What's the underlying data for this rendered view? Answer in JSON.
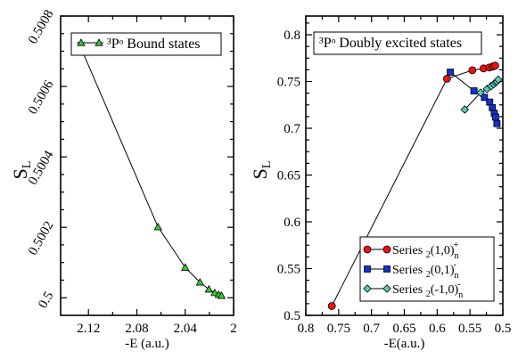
{
  "chart_data": [
    {
      "type": "line",
      "legend_text": "³Pᵒ  Bound states",
      "legend_placement": "top-right",
      "xlabel": "-E (a.u.)",
      "ylabel": "S",
      "ylabel_sub": "L",
      "x_reversed": true,
      "xlim": [
        2.143,
        2.0
      ],
      "ylim": [
        0.49995,
        0.5008
      ],
      "xticks": [
        2.12,
        2.08,
        2.04,
        2.0
      ],
      "xtick_labels": [
        "2.12",
        "2.08",
        "2.04",
        "2"
      ],
      "yticks": [
        0.5,
        0.5002,
        0.5004,
        0.5006,
        0.5008
      ],
      "ytick_labels": [
        "0.5",
        "0.5002",
        "0.5004",
        "0.5006",
        "0.5008"
      ],
      "grid": false,
      "series": [
        {
          "name": "³Pᵒ Bound states",
          "color": "#33cc33",
          "marker": "triangle",
          "x": [
            2.125,
            2.0625,
            2.04,
            2.0278,
            2.0204,
            2.0156,
            2.0123,
            2.01
          ],
          "y": [
            0.5007,
            0.500201,
            0.500086,
            0.500044,
            0.500024,
            0.500014,
            0.500009,
            0.500006
          ]
        }
      ]
    },
    {
      "type": "line",
      "legend_text": "³Pᵒ Doubly excited states",
      "xlabel": "-E(a.u.)",
      "ylabel": "S",
      "ylabel_sub": "L",
      "x_reversed": true,
      "xlim": [
        0.8,
        0.5
      ],
      "ylim": [
        0.5,
        0.82
      ],
      "xticks": [
        0.8,
        0.75,
        0.7,
        0.65,
        0.6,
        0.55,
        0.5
      ],
      "xtick_labels": [
        "0.8",
        "0.75",
        "0.7",
        "0.65",
        "0.6",
        "0.55",
        "0.5"
      ],
      "yticks": [
        0.5,
        0.55,
        0.6,
        0.65,
        0.7,
        0.75,
        0.8
      ],
      "ytick_labels": [
        "0.5",
        "0.55",
        "0.6",
        "0.65",
        "0.7",
        "0.75",
        "0.8"
      ],
      "grid": false,
      "legend_placement": "bottom-right",
      "series": [
        {
          "name": "Series ₂(1,0)ₙ⁺",
          "legend_main": "Series ",
          "legend_pre": "2",
          "legend_body": "(1,0)",
          "legend_sub": "n",
          "legend_sup": "+",
          "color": "#ee1111",
          "marker": "circle",
          "x": [
            0.7604,
            0.585,
            0.5464,
            0.5294,
            0.5205,
            0.5152,
            0.5117
          ],
          "y": [
            0.51,
            0.753,
            0.762,
            0.764,
            0.765,
            0.766,
            0.767
          ]
        },
        {
          "name": "Series ₂(0,1)ₙ⁻",
          "legend_main": "Series ",
          "legend_pre": "2",
          "legend_body": "(0,1)",
          "legend_sub": "n",
          "legend_sup": "-",
          "color": "#1133cc",
          "marker": "square",
          "x": [
            0.58,
            0.544,
            0.528,
            0.52,
            0.516,
            0.513,
            0.511,
            0.509
          ],
          "y": [
            0.76,
            0.74,
            0.733,
            0.728,
            0.722,
            0.716,
            0.712,
            0.705
          ]
        },
        {
          "name": "Series ₂(-1,0)ₙ⁻",
          "legend_main": "Series ",
          "legend_pre": "2",
          "legend_body": "(-1,0)",
          "legend_sub": "n",
          "legend_sup": "-",
          "color": "#55ccbb",
          "marker": "diamond",
          "x": [
            0.558,
            0.534,
            0.524,
            0.518,
            0.514,
            0.511,
            0.509,
            0.507
          ],
          "y": [
            0.72,
            0.738,
            0.742,
            0.745,
            0.747,
            0.749,
            0.75,
            0.752
          ]
        }
      ]
    }
  ]
}
